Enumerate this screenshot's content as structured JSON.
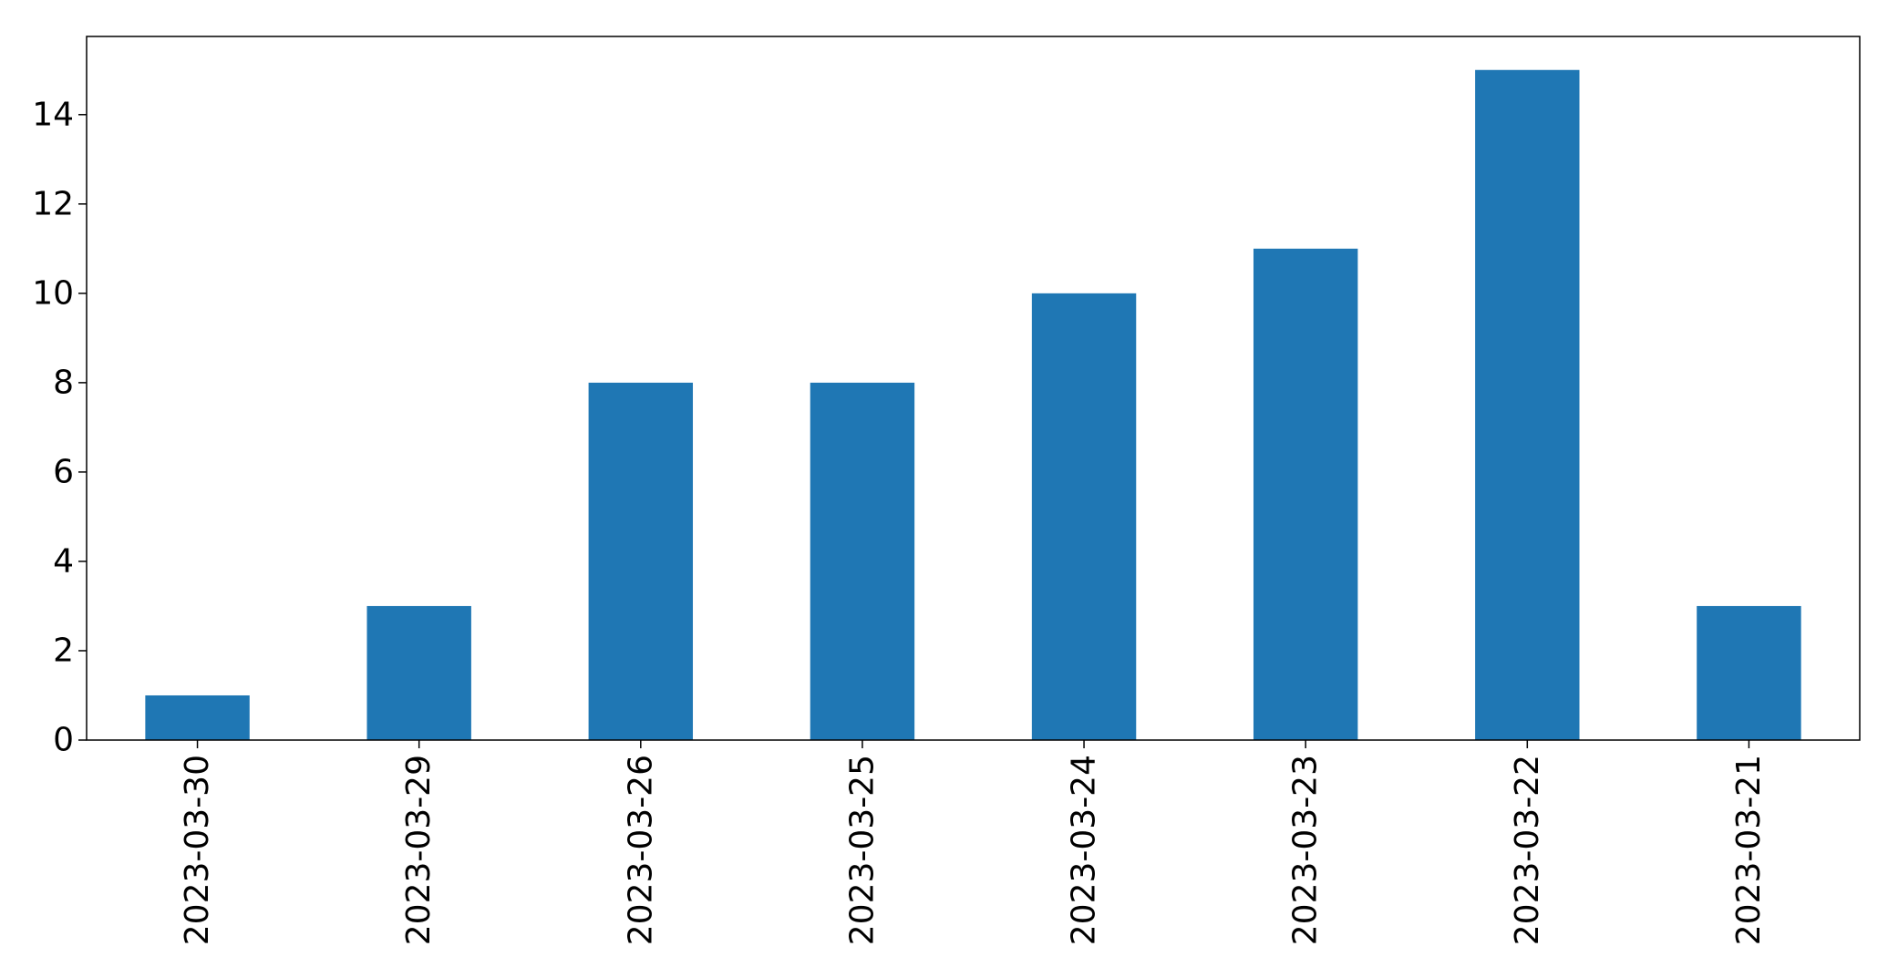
{
  "chart_data": {
    "type": "bar",
    "categories": [
      "2023-03-30",
      "2023-03-29",
      "2023-03-26",
      "2023-03-25",
      "2023-03-24",
      "2023-03-23",
      "2023-03-22",
      "2023-03-21"
    ],
    "values": [
      1,
      3,
      8,
      8,
      10,
      11,
      15,
      3
    ],
    "title": "",
    "xlabel": "",
    "ylabel": "",
    "ylim": [
      0,
      15.75
    ],
    "yticks": [
      0,
      2,
      4,
      6,
      8,
      10,
      12,
      14
    ],
    "x_tick_rotation": "vertical",
    "grid": false,
    "legend": "none",
    "colors": {
      "bar": "#1f77b4",
      "axis": "#000000",
      "background": "#ffffff"
    }
  }
}
